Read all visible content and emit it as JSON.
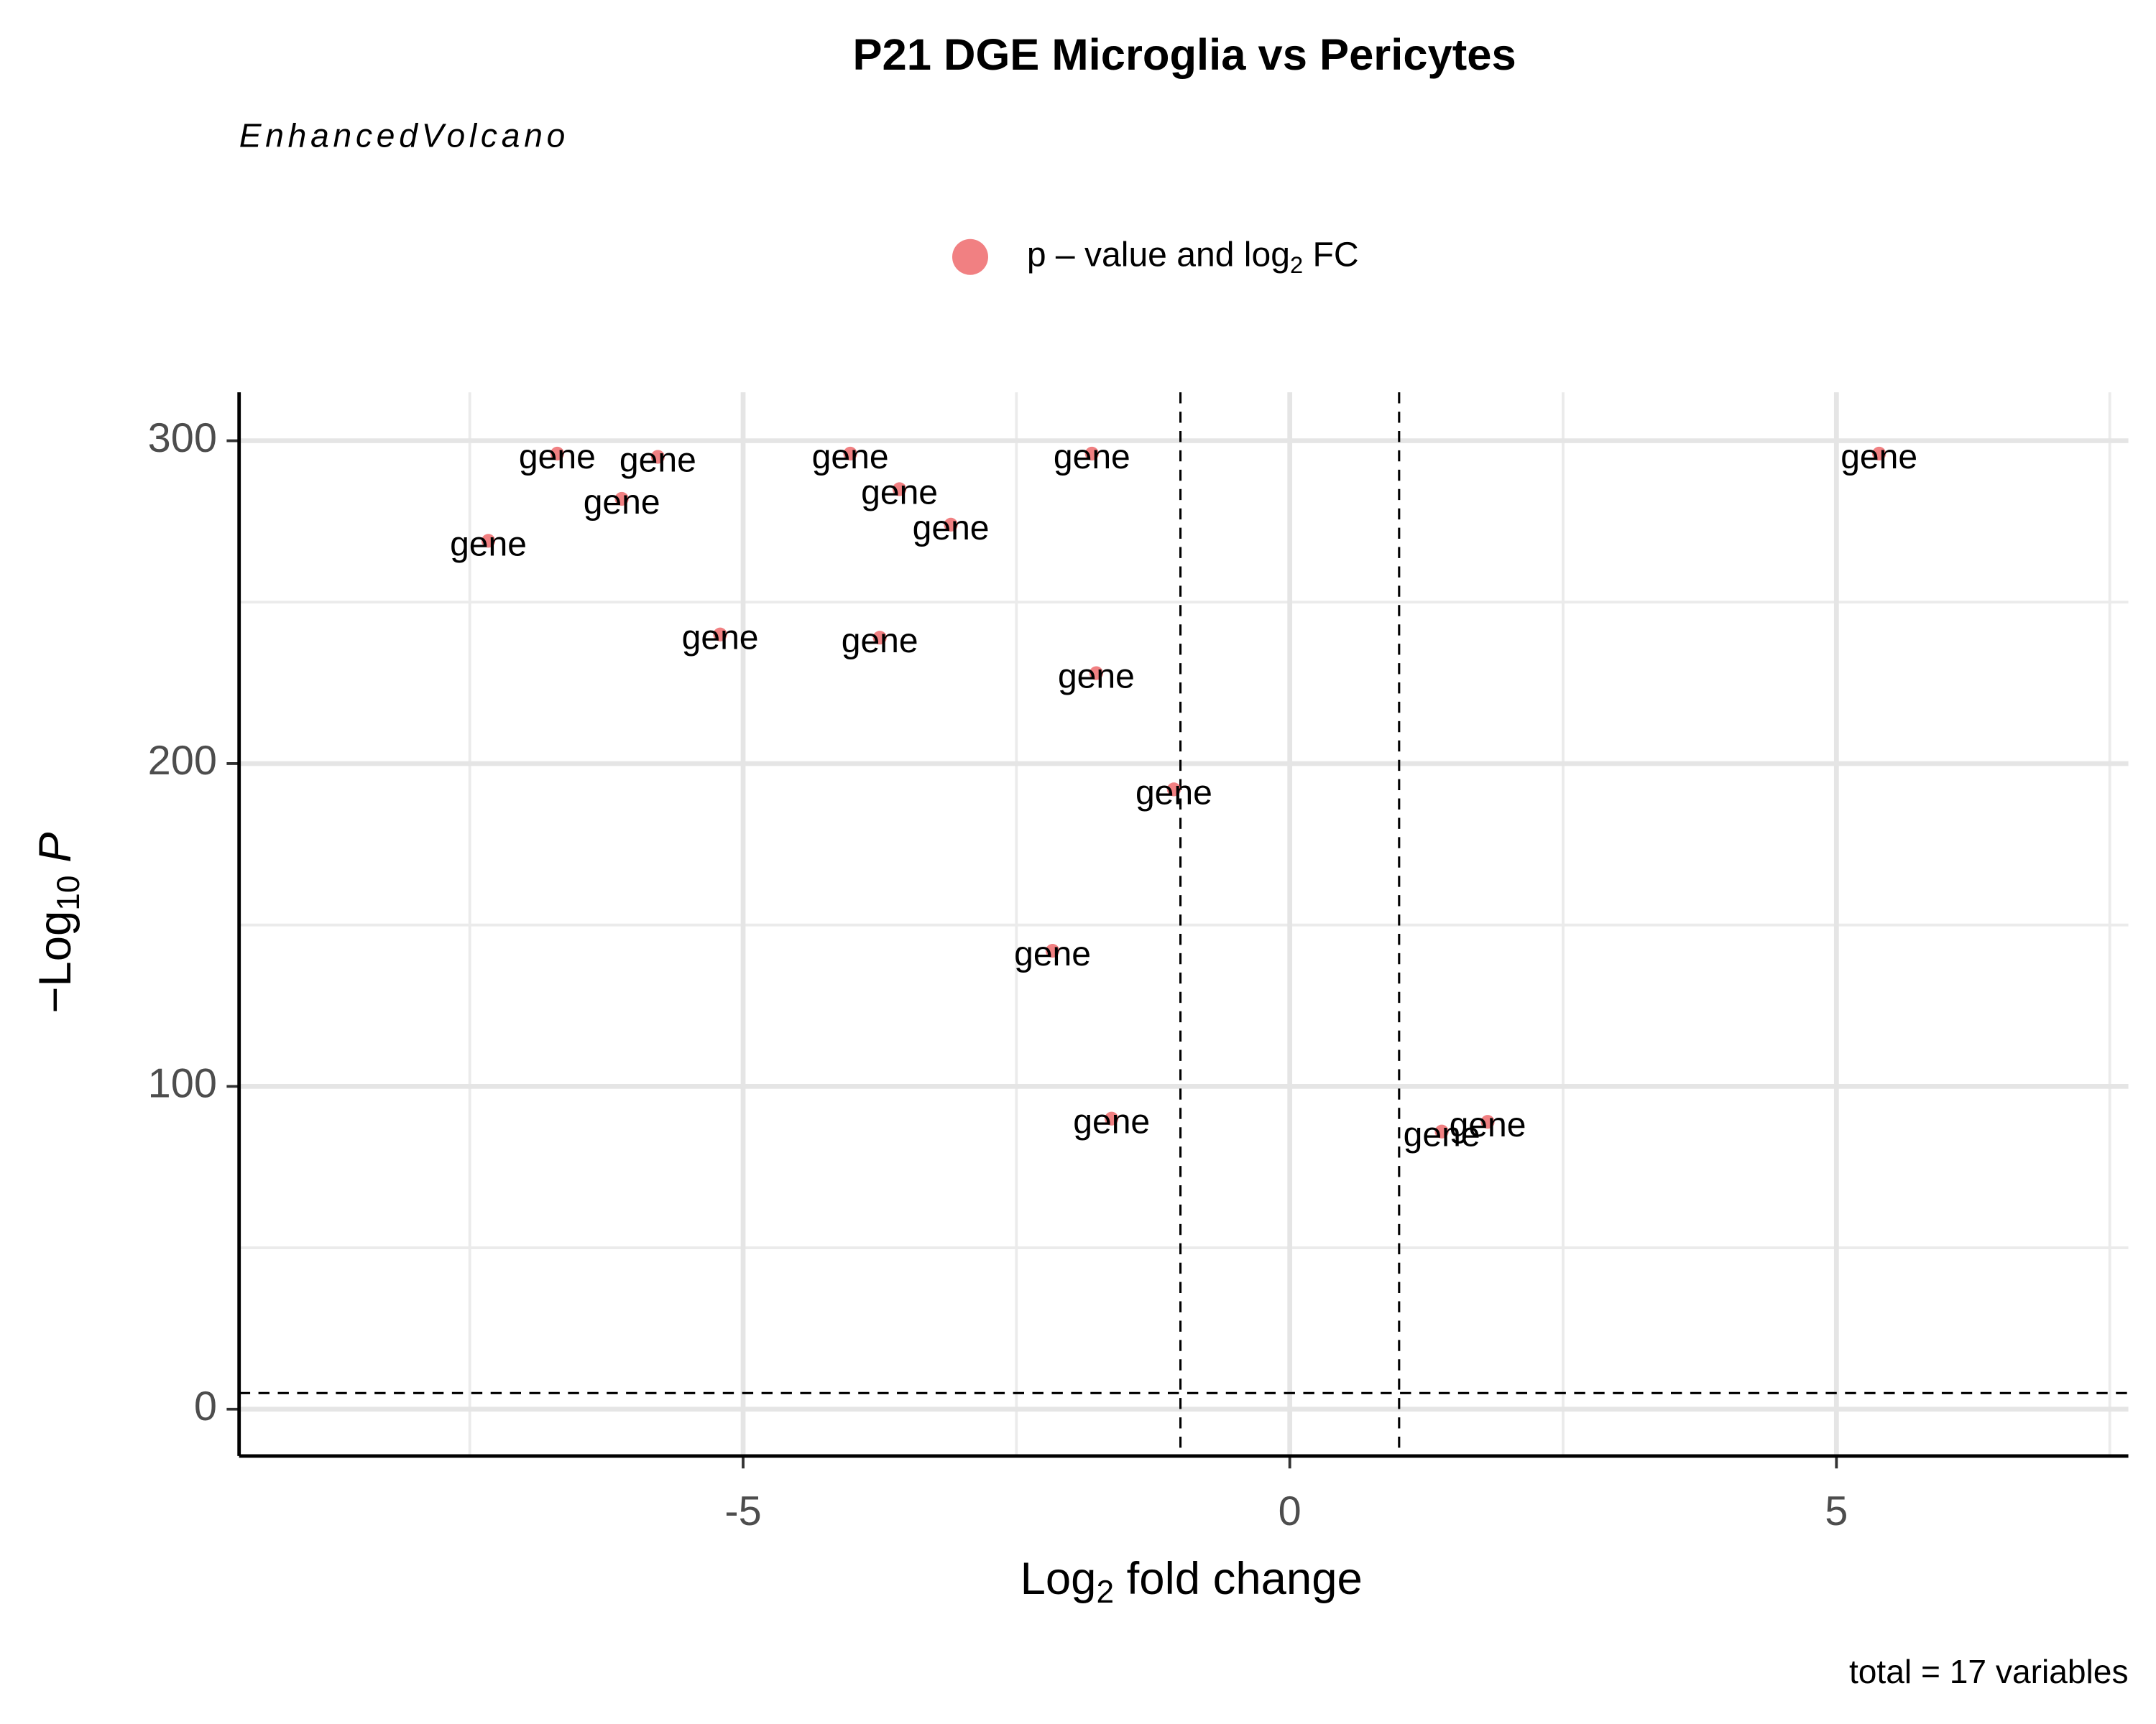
{
  "chart_data": {
    "type": "scatter",
    "title": "P21 DGE Microglia vs Pericytes",
    "subtitle": "EnhancedVolcano",
    "caption": "total = 17 variables",
    "legend": {
      "text": "p – value and log",
      "sub": "2",
      "rest": " FC"
    },
    "xlabel": {
      "text": "Log",
      "sub": "2",
      "rest": " fold change"
    },
    "ylabel": {
      "text": "−Log",
      "sub": "10",
      "rest": " P"
    },
    "color": "#ee6a6c",
    "x": [
      -6.7,
      -5.78,
      -6.11,
      -7.33,
      -4.02,
      -3.57,
      -3.1,
      -1.81,
      5.39,
      -5.21,
      -3.75,
      -1.77,
      -1.06,
      -2.17,
      -1.63,
      1.39,
      1.81
    ],
    "values": [
      296,
      295,
      282,
      269,
      296,
      285,
      274,
      296,
      296,
      240,
      239,
      228,
      192,
      142,
      90,
      86,
      89
    ],
    "labels": [
      "gene",
      "gene",
      "gene",
      "gene",
      "gene",
      "gene",
      "gene",
      "gene",
      "gene",
      "gene",
      "gene",
      "gene",
      "gene",
      "gene",
      "gene",
      "gene",
      "gene"
    ],
    "xlim": [
      -9.61,
      7.67
    ],
    "ylim": [
      -14.5,
      315
    ],
    "xticks": [
      -5,
      0,
      5
    ],
    "yticks": [
      0,
      100,
      200,
      300
    ],
    "xminor": [
      -7.5,
      -2.5,
      2.5,
      7.5
    ],
    "yminor": [
      50,
      150,
      250
    ],
    "vlines": [
      -1,
      1
    ],
    "hline": 5,
    "grid": true
  }
}
